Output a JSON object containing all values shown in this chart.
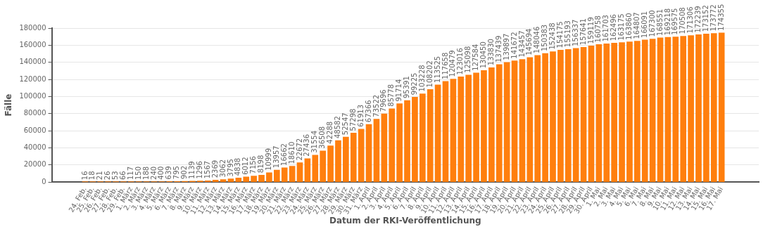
{
  "chart_data": {
    "type": "bar",
    "xlabel": "Datum der RKI-Veröffentlichung",
    "ylabel": "Fälle",
    "categories": [
      "24. Feb.",
      "25. Feb.",
      "26. Feb.",
      "27. Feb.",
      "28. Feb.",
      "29. Feb.",
      "1. März",
      "2. März",
      "3. März",
      "4. März",
      "5. März",
      "6. März",
      "7. März",
      "8. März",
      "9. März",
      "10. März",
      "11. März",
      "12. März",
      "13. März",
      "14. März",
      "15. März",
      "16. März",
      "17. März",
      "18. März",
      "19. März",
      "20. März",
      "21. März",
      "22. März",
      "23. März",
      "24. März",
      "25. März",
      "26. März",
      "27. März",
      "28. März",
      "29. März",
      "30. März",
      "31. März",
      "1. April",
      "2. April",
      "3. April",
      "4. April",
      "5. April",
      "6. April",
      "7. April",
      "8. April",
      "9. April",
      "10. April",
      "11. April",
      "12. April",
      "13. April",
      "14. April",
      "15. April",
      "16. April",
      "17. April",
      "18. April",
      "19. April",
      "20. April",
      "21. April",
      "22. April",
      "23. April",
      "24. April",
      "25. April",
      "26. April",
      "27. April",
      "28. April",
      "29. April",
      "30. April",
      "1. Mai",
      "2. Mai",
      "3. Mai",
      "4. Mai",
      "5. Mai",
      "6. Mai",
      "7. Mai",
      "8. Mai",
      "9. Mai",
      "10. Mai",
      "11. Mai",
      "12. Mai",
      "13. Mai",
      "14. Mai",
      "15. Mai",
      "16. Mai",
      "17. Mai"
    ],
    "values": [
      16,
      18,
      21,
      26,
      53,
      66,
      117,
      150,
      188,
      240,
      400,
      639,
      795,
      902,
      1139,
      1296,
      1567,
      2369,
      3062,
      3795,
      4838,
      6012,
      7156,
      8198,
      10999,
      13957,
      16662,
      18610,
      22672,
      27436,
      31554,
      36508,
      42288,
      48582,
      52547,
      57298,
      61913,
      67366,
      73522,
      79696,
      85778,
      91714,
      95391,
      99225,
      103228,
      108202,
      113525,
      117658,
      120479,
      123016,
      125098,
      127584,
      130450,
      133830,
      137439,
      139897,
      141672,
      143457,
      145694,
      148046,
      150383,
      152438,
      154175,
      155193,
      156337,
      157641,
      159119,
      160758,
      161703,
      162496,
      163175,
      163860,
      164807,
      166091,
      167300,
      168551,
      169218,
      169575,
      170508,
      171306,
      172239,
      173152,
      173772,
      174355
    ],
    "color": "#ff7f0e",
    "ylim": [
      0,
      180000
    ],
    "yticks": [
      0,
      20000,
      40000,
      60000,
      80000,
      100000,
      120000,
      140000,
      160000,
      180000
    ],
    "grid": "y",
    "data_labels": true
  }
}
